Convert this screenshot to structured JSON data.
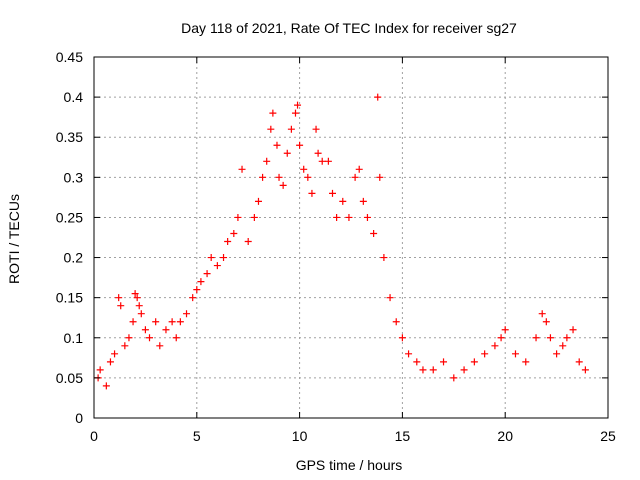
{
  "chart_data": {
    "type": "scatter",
    "title": "Day 118 of 2021, Rate Of TEC Index for receiver sg27",
    "xlabel": "GPS time / hours",
    "ylabel": "ROTI / TECUs",
    "xlim": [
      0,
      25
    ],
    "ylim": [
      0,
      0.45
    ],
    "x_ticks": [
      0,
      5,
      10,
      15,
      20,
      25
    ],
    "x_tick_labels": [
      "0",
      "5",
      "10",
      "15",
      "20",
      "25"
    ],
    "y_ticks": [
      0,
      0.05,
      0.1,
      0.15,
      0.2,
      0.25,
      0.3,
      0.35,
      0.4,
      0.45
    ],
    "y_tick_labels": [
      "0",
      "0.05",
      "0.1",
      "0.15",
      "0.2",
      "0.25",
      "0.3",
      "0.35",
      "0.4",
      "0.45"
    ],
    "grid": true,
    "marker": "+",
    "series": [
      {
        "name": "ROTI",
        "color": "#ff0000",
        "points": [
          [
            0.2,
            0.05
          ],
          [
            0.3,
            0.06
          ],
          [
            0.6,
            0.04
          ],
          [
            0.8,
            0.07
          ],
          [
            1.0,
            0.08
          ],
          [
            1.2,
            0.15
          ],
          [
            1.3,
            0.14
          ],
          [
            1.5,
            0.09
          ],
          [
            1.7,
            0.1
          ],
          [
            1.9,
            0.12
          ],
          [
            2.0,
            0.155
          ],
          [
            2.1,
            0.15
          ],
          [
            2.2,
            0.14
          ],
          [
            2.3,
            0.13
          ],
          [
            2.5,
            0.11
          ],
          [
            2.7,
            0.1
          ],
          [
            3.0,
            0.12
          ],
          [
            3.2,
            0.09
          ],
          [
            3.5,
            0.11
          ],
          [
            3.8,
            0.12
          ],
          [
            4.0,
            0.1
          ],
          [
            4.2,
            0.12
          ],
          [
            4.5,
            0.13
          ],
          [
            4.8,
            0.15
          ],
          [
            5.0,
            0.16
          ],
          [
            5.2,
            0.17
          ],
          [
            5.5,
            0.18
          ],
          [
            5.7,
            0.2
          ],
          [
            6.0,
            0.19
          ],
          [
            6.3,
            0.2
          ],
          [
            6.5,
            0.22
          ],
          [
            6.8,
            0.23
          ],
          [
            7.0,
            0.25
          ],
          [
            7.2,
            0.31
          ],
          [
            7.5,
            0.22
          ],
          [
            7.8,
            0.25
          ],
          [
            8.0,
            0.27
          ],
          [
            8.2,
            0.3
          ],
          [
            8.4,
            0.32
          ],
          [
            8.6,
            0.36
          ],
          [
            8.7,
            0.38
          ],
          [
            8.9,
            0.34
          ],
          [
            9.0,
            0.3
          ],
          [
            9.2,
            0.29
          ],
          [
            9.4,
            0.33
          ],
          [
            9.6,
            0.36
          ],
          [
            9.8,
            0.38
          ],
          [
            9.9,
            0.39
          ],
          [
            10.0,
            0.34
          ],
          [
            10.2,
            0.31
          ],
          [
            10.4,
            0.3
          ],
          [
            10.6,
            0.28
          ],
          [
            10.8,
            0.36
          ],
          [
            10.9,
            0.33
          ],
          [
            11.1,
            0.32
          ],
          [
            11.4,
            0.32
          ],
          [
            11.6,
            0.28
          ],
          [
            11.8,
            0.25
          ],
          [
            12.1,
            0.27
          ],
          [
            12.4,
            0.25
          ],
          [
            12.7,
            0.3
          ],
          [
            12.9,
            0.31
          ],
          [
            13.1,
            0.27
          ],
          [
            13.3,
            0.25
          ],
          [
            13.6,
            0.23
          ],
          [
            13.8,
            0.4
          ],
          [
            13.9,
            0.3
          ],
          [
            14.1,
            0.2
          ],
          [
            14.4,
            0.15
          ],
          [
            14.7,
            0.12
          ],
          [
            15.0,
            0.1
          ],
          [
            15.3,
            0.08
          ],
          [
            15.7,
            0.07
          ],
          [
            16.0,
            0.06
          ],
          [
            16.5,
            0.06
          ],
          [
            17.0,
            0.07
          ],
          [
            17.5,
            0.05
          ],
          [
            18.0,
            0.06
          ],
          [
            18.5,
            0.07
          ],
          [
            19.0,
            0.08
          ],
          [
            19.5,
            0.09
          ],
          [
            19.8,
            0.1
          ],
          [
            20.0,
            0.11
          ],
          [
            20.5,
            0.08
          ],
          [
            21.0,
            0.07
          ],
          [
            21.5,
            0.1
          ],
          [
            21.8,
            0.13
          ],
          [
            22.0,
            0.12
          ],
          [
            22.2,
            0.1
          ],
          [
            22.5,
            0.08
          ],
          [
            22.8,
            0.09
          ],
          [
            23.0,
            0.1
          ],
          [
            23.3,
            0.11
          ],
          [
            23.6,
            0.07
          ],
          [
            23.9,
            0.06
          ]
        ]
      }
    ]
  }
}
